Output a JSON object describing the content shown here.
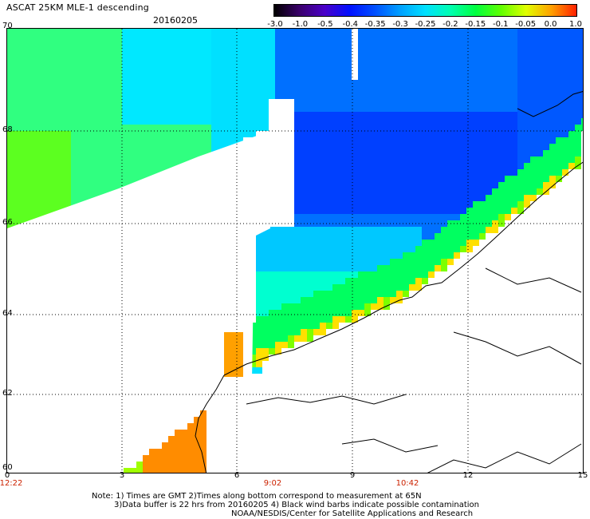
{
  "header": {
    "title": "ASCAT 25KM MLE-1 descending",
    "date": "20160205"
  },
  "colorbar": {
    "ticks": [
      "-3.0",
      "-1.0",
      "-0.5",
      "-0.4",
      "-0.35",
      "-0.3",
      "-0.25",
      "-0.2",
      "-0.15",
      "-0.1",
      "-0.05",
      "0.0",
      "1.0"
    ],
    "colors": [
      "#000000",
      "#3a006a",
      "#4a00c8",
      "#0010ff",
      "#0050ff",
      "#00a0ff",
      "#00e0ff",
      "#00ffb0",
      "#00ff40",
      "#60ff00",
      "#e0ff00",
      "#ffa000",
      "#ff2000"
    ]
  },
  "map": {
    "lat_labels": [
      "70",
      "68",
      "66",
      "64",
      "62",
      "60"
    ],
    "lon_labels": [
      "0",
      "3",
      "6",
      "9",
      "12",
      "15"
    ],
    "time_labels": [
      "12:22",
      "9:02",
      "10:42"
    ]
  },
  "notes": {
    "line1": "Note: 1) Times are GMT 2)Times along bottom correspond to measurement at 65N",
    "line2": "3)Data buffer is 22 hrs from 20160205 4) Black wind barbs indicate possible contamination",
    "line3": "NOAA/NESDIS/Center for Satellite Applications and Research"
  }
}
